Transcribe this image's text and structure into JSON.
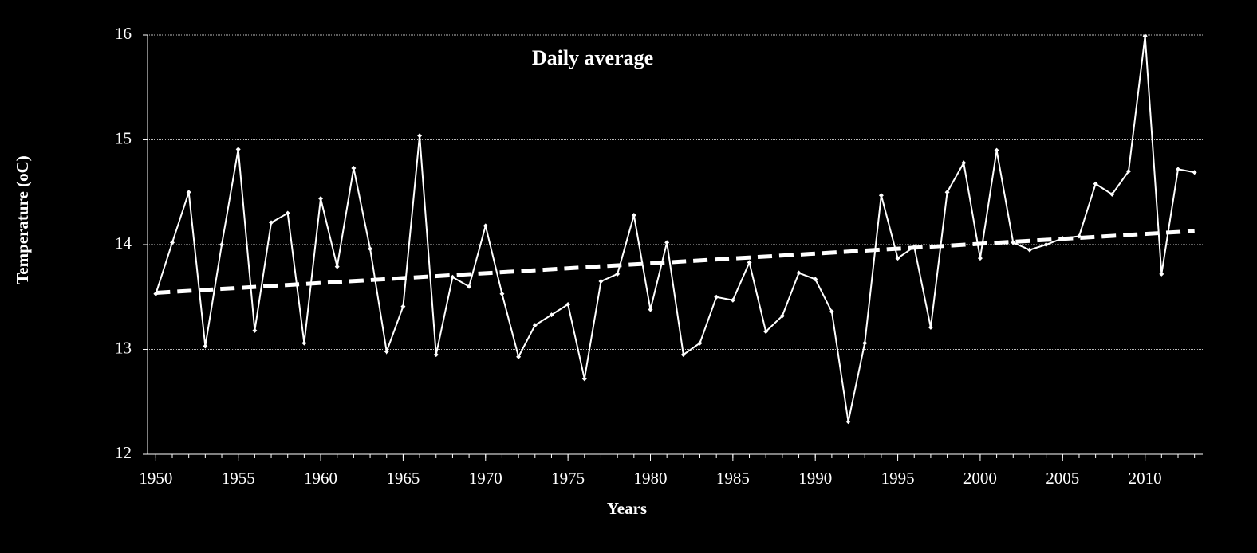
{
  "chart_data": {
    "type": "line",
    "title": "Daily average",
    "x_label": "Years",
    "y_label": "Temperature (oC)",
    "x": [
      1950,
      1951,
      1952,
      1953,
      1954,
      1955,
      1956,
      1957,
      1958,
      1959,
      1960,
      1961,
      1962,
      1963,
      1964,
      1965,
      1966,
      1967,
      1968,
      1969,
      1970,
      1971,
      1972,
      1973,
      1974,
      1975,
      1976,
      1977,
      1978,
      1979,
      1980,
      1981,
      1982,
      1983,
      1984,
      1985,
      1986,
      1987,
      1988,
      1989,
      1990,
      1991,
      1992,
      1993,
      1994,
      1995,
      1996,
      1997,
      1998,
      1999,
      2000,
      2001,
      2002,
      2003,
      2004,
      2005,
      2006,
      2007,
      2008,
      2009,
      2010,
      2011,
      2012,
      2013
    ],
    "series": [
      {
        "color": "#ffffff",
        "values": [
          13.53,
          14.02,
          14.5,
          13.03,
          14.0,
          14.91,
          13.18,
          14.21,
          14.3,
          13.06,
          14.44,
          13.79,
          14.73,
          13.96,
          12.98,
          13.41,
          15.04,
          12.95,
          13.69,
          13.6,
          14.18,
          13.53,
          12.93,
          13.23,
          13.33,
          13.43,
          12.72,
          13.65,
          13.72,
          14.28,
          13.38,
          14.02,
          12.95,
          13.06,
          13.5,
          13.47,
          13.83,
          13.17,
          13.32,
          13.73,
          13.67,
          13.36,
          12.31,
          13.06,
          14.47,
          13.87,
          13.98,
          13.21,
          14.5,
          14.78,
          13.87,
          14.9,
          14.02,
          13.95,
          14.0,
          14.06,
          14.08,
          14.58,
          14.48,
          14.7,
          15.99,
          13.72,
          14.72,
          14.69
        ]
      }
    ],
    "trend": {
      "x": [
        1950,
        2013
      ],
      "values": [
        13.54,
        14.13
      ],
      "color": "#ffffff"
    },
    "xlim": [
      1949.5,
      2013.5
    ],
    "xticks": [
      1950,
      1955,
      1960,
      1965,
      1970,
      1975,
      1980,
      1985,
      1990,
      1995,
      2000,
      2005,
      2010
    ],
    "ylim": [
      12,
      16
    ],
    "yticks": [
      12,
      13,
      14,
      15,
      16
    ],
    "grid": true
  }
}
